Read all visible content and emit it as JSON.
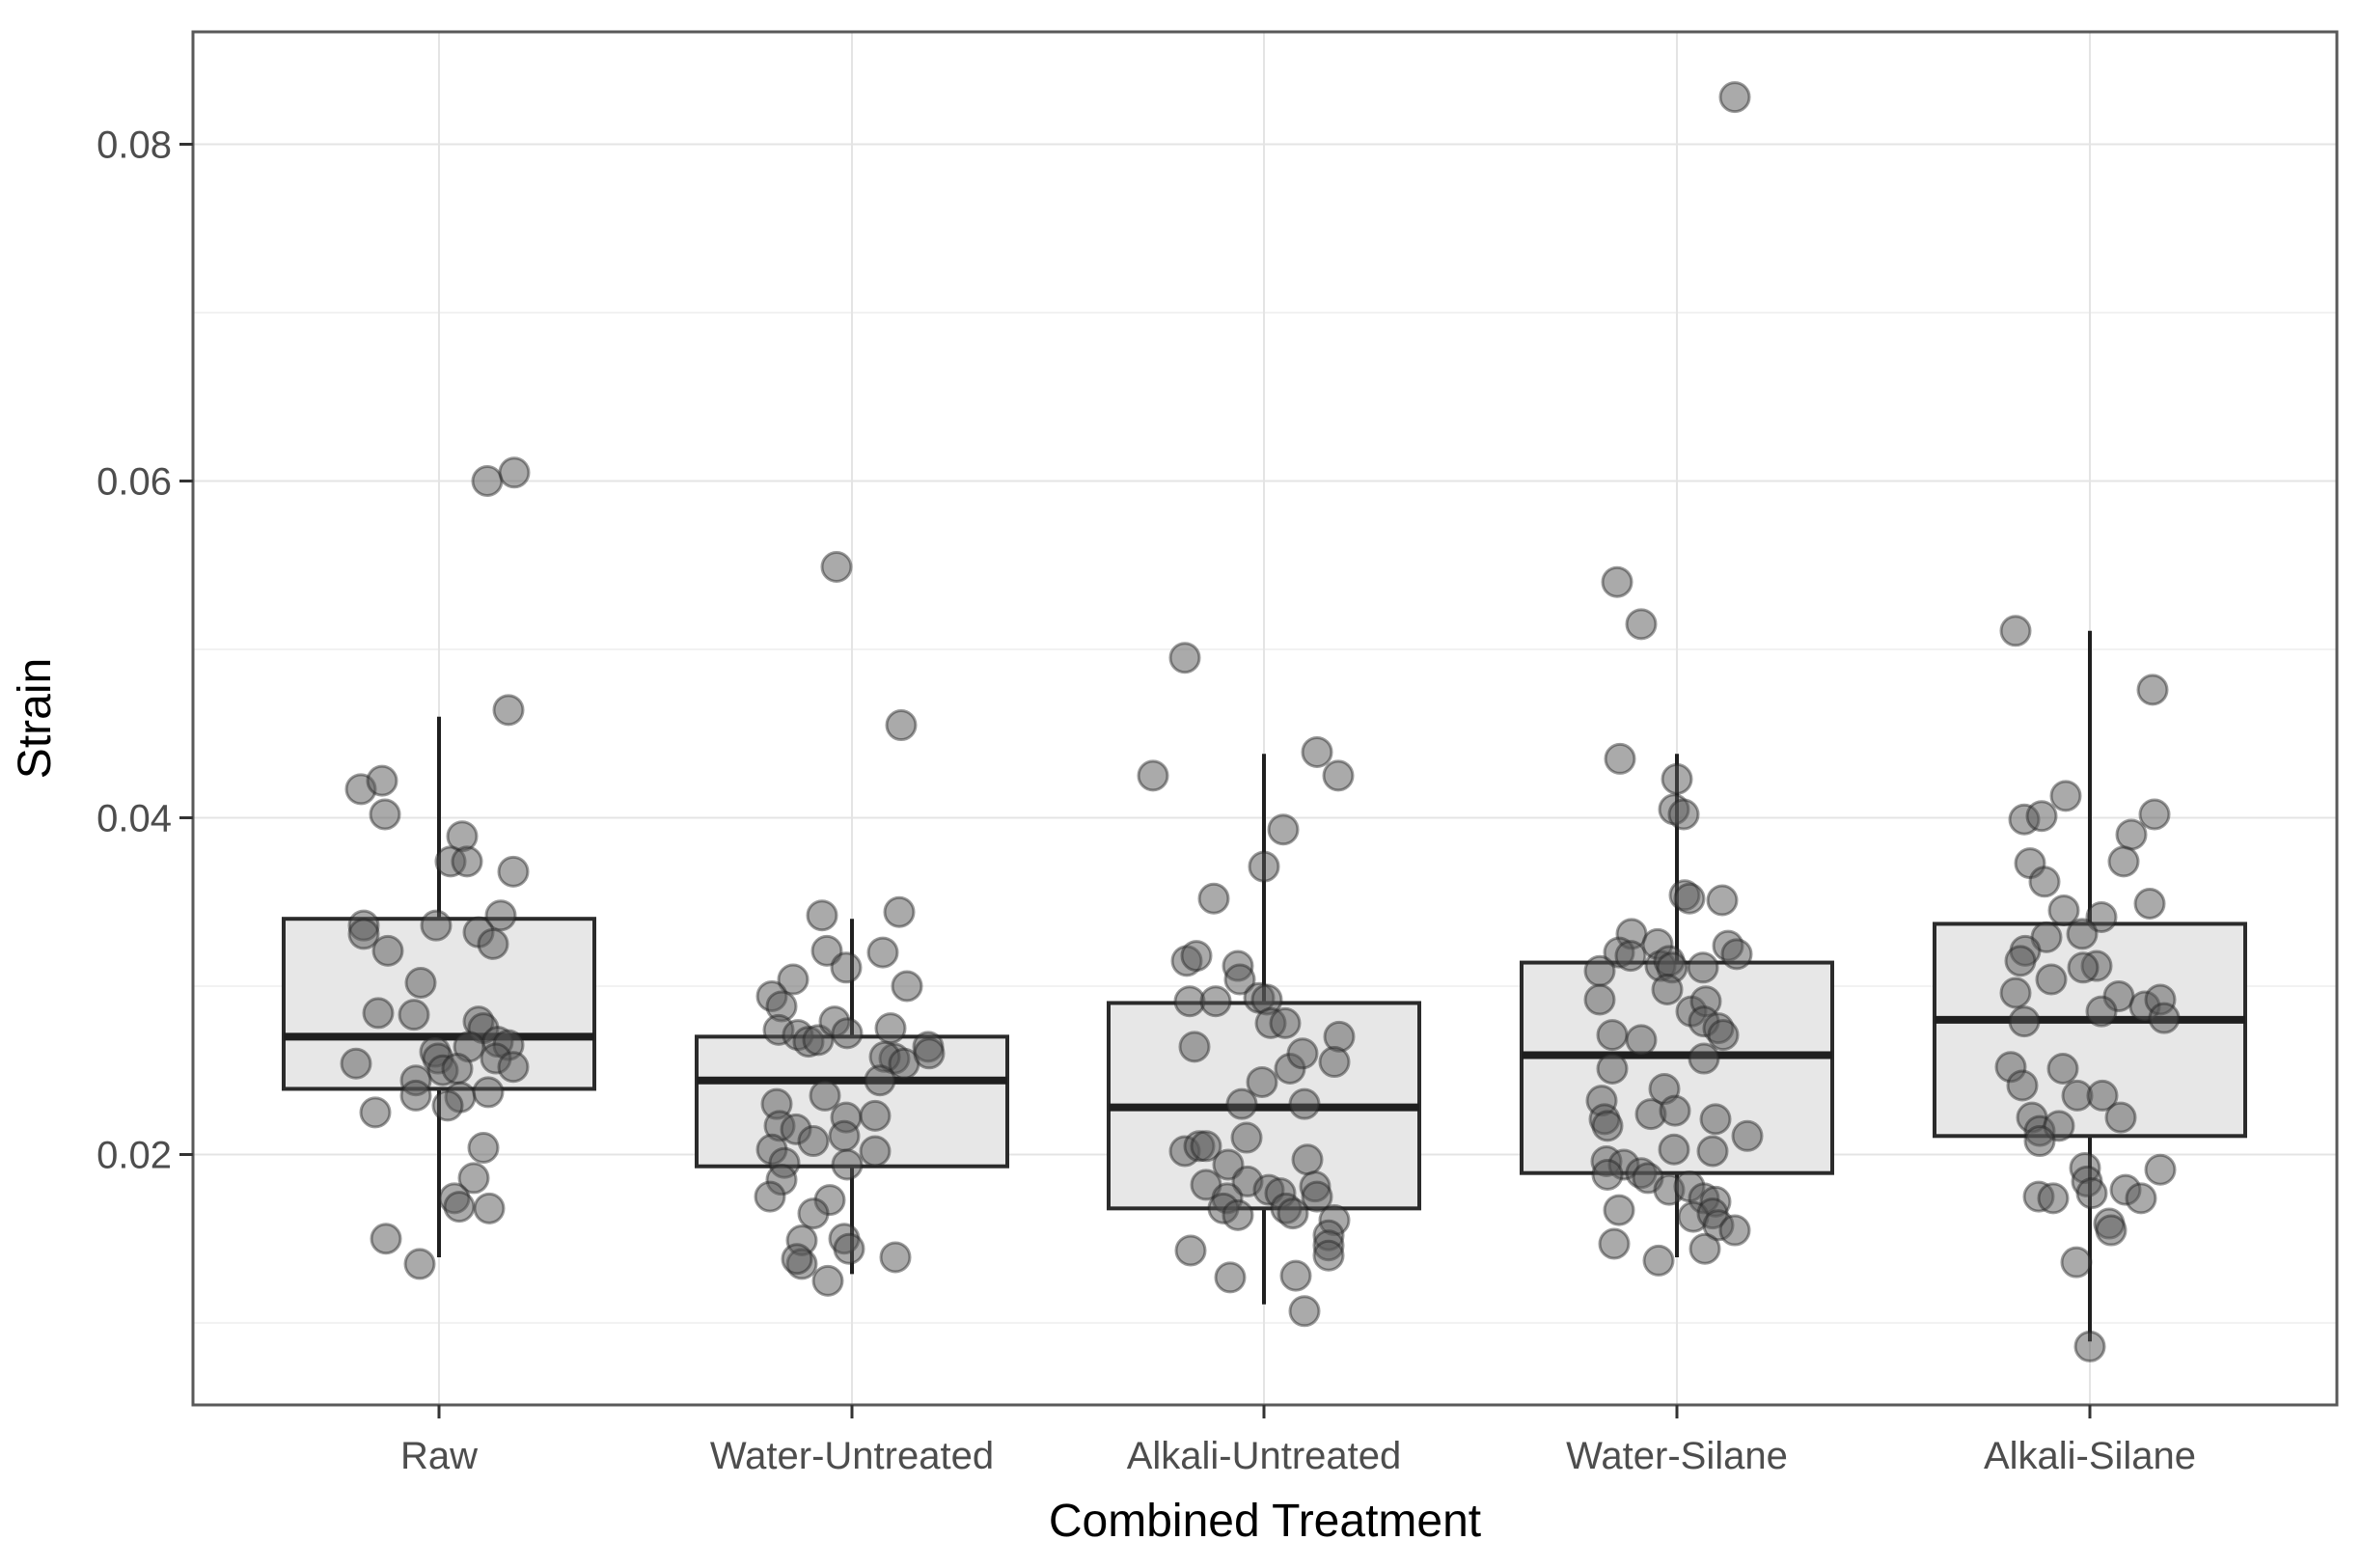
{
  "chart_data": {
    "type": "boxplot",
    "subtype": "boxplot-with-jittered-points",
    "title": "",
    "xlabel": "Combined Treatment",
    "ylabel": "Strain",
    "categories": [
      "Raw",
      "Water-Untreated",
      "Alkali-Untreated",
      "Water-Silane",
      "Alkali-Silane"
    ],
    "y_ticks": [
      0.02,
      0.04,
      0.06,
      0.08
    ],
    "y_tick_labels": [
      "0.02",
      "0.04",
      "0.06",
      "0.08"
    ],
    "y_minor_gridlines": [
      0.01,
      0.03,
      0.05,
      0.07
    ],
    "ylim": [
      0.0051,
      0.0867
    ],
    "grid": "on",
    "legend": "none",
    "colors": {
      "panel_background": "#ffffff",
      "panel_border": "#595959",
      "grid_major": "#e4e4e4",
      "grid_minor": "#f2f2f2",
      "box_fill": "#e7e7e7",
      "box_stroke": "#2b2b2b",
      "median_stroke": "#1f1f1f",
      "whisker_stroke": "#1f1f1f",
      "point_fill": "#555555",
      "point_stroke": "#222222",
      "tick_label_color": "#4d4d4d",
      "axis_title_color": "#000000"
    },
    "groups": [
      {
        "name": "Raw",
        "box": {
          "whisker_low": 0.0139,
          "q1": 0.0239,
          "median": 0.027,
          "q3": 0.034,
          "whisker_high": 0.046
        },
        "points": [
          [
            50,
            0.06
          ],
          [
            78,
            0.0605
          ],
          [
            72,
            0.0464
          ],
          [
            -81,
            0.0417
          ],
          [
            -59,
            0.0422
          ],
          [
            -56,
            0.0402
          ],
          [
            24,
            0.0389
          ],
          [
            12,
            0.0374
          ],
          [
            29,
            0.0374
          ],
          [
            77,
            0.0368
          ],
          [
            -78,
            0.0336
          ],
          [
            -78,
            0.0331
          ],
          [
            -3,
            0.0336
          ],
          [
            64,
            0.0342
          ],
          [
            41,
            0.0332
          ],
          [
            56,
            0.0325
          ],
          [
            -53,
            0.0321
          ],
          [
            -19,
            0.0302
          ],
          [
            -63,
            0.0284
          ],
          [
            -26,
            0.0283
          ],
          [
            41,
            0.0279
          ],
          [
            46,
            0.0275
          ],
          [
            61,
            0.0267
          ],
          [
            72,
            0.0265
          ],
          [
            31,
            0.0264
          ],
          [
            59,
            0.0257
          ],
          [
            -4,
            0.0261
          ],
          [
            -1,
            0.0257
          ],
          [
            -86,
            0.0254
          ],
          [
            77,
            0.0252
          ],
          [
            4,
            0.025
          ],
          [
            19,
            0.0251
          ],
          [
            -24,
            0.0244
          ],
          [
            22,
            0.0234
          ],
          [
            51,
            0.0237
          ],
          [
            -24,
            0.0235
          ],
          [
            9,
            0.0229
          ],
          [
            -66,
            0.0225
          ],
          [
            46,
            0.0204
          ],
          [
            36,
            0.0186
          ],
          [
            16,
            0.0174
          ],
          [
            21,
            0.0169
          ],
          [
            52,
            0.0168
          ],
          [
            -55,
            0.015
          ],
          [
            -20,
            0.0135
          ]
        ]
      },
      {
        "name": "Water-Untreated",
        "box": {
          "whisker_low": 0.0129,
          "q1": 0.0193,
          "median": 0.0244,
          "q3": 0.027,
          "whisker_high": 0.034
        },
        "points": [
          [
            -16,
            0.0549
          ],
          [
            51,
            0.0455
          ],
          [
            -31,
            0.0342
          ],
          [
            49,
            0.0344
          ],
          [
            -26,
            0.0321
          ],
          [
            -6,
            0.0311
          ],
          [
            32,
            0.032
          ],
          [
            -61,
            0.0304
          ],
          [
            57,
            0.03
          ],
          [
            -83,
            0.0294
          ],
          [
            -73,
            0.0288
          ],
          [
            -76,
            0.0274
          ],
          [
            -56,
            0.0271
          ],
          [
            -45,
            0.0267
          ],
          [
            -35,
            0.0268
          ],
          [
            -18,
            0.0279
          ],
          [
            -5,
            0.0272
          ],
          [
            40,
            0.0275
          ],
          [
            44,
            0.0257
          ],
          [
            34,
            0.0258
          ],
          [
            54,
            0.0254
          ],
          [
            79,
            0.0264
          ],
          [
            80,
            0.026
          ],
          [
            29,
            0.0244
          ],
          [
            -28,
            0.0235
          ],
          [
            -78,
            0.023
          ],
          [
            -75,
            0.0217
          ],
          [
            -58,
            0.0215
          ],
          [
            -40,
            0.0208
          ],
          [
            -6,
            0.0222
          ],
          [
            24,
            0.0223
          ],
          [
            -8,
            0.0211
          ],
          [
            24,
            0.0202
          ],
          [
            -83,
            0.0203
          ],
          [
            -70,
            0.0195
          ],
          [
            -5,
            0.0194
          ],
          [
            -73,
            0.0185
          ],
          [
            -85,
            0.0175
          ],
          [
            -23,
            0.0173
          ],
          [
            -40,
            0.0165
          ],
          [
            -52,
            0.0149
          ],
          [
            -52,
            0.0135
          ],
          [
            -57,
            0.0138
          ],
          [
            -25,
            0.0125
          ],
          [
            -8,
            0.015
          ],
          [
            -3,
            0.0144
          ],
          [
            45,
            0.0139
          ]
        ]
      },
      {
        "name": "Alkali-Untreated",
        "box": {
          "whisker_low": 0.0111,
          "q1": 0.0168,
          "median": 0.0228,
          "q3": 0.029,
          "whisker_high": 0.0438
        },
        "points": [
          [
            -82,
            0.0495
          ],
          [
            -115,
            0.0425
          ],
          [
            55,
            0.0439
          ],
          [
            77,
            0.0425
          ],
          [
            20,
            0.0393
          ],
          [
            0,
            0.0371
          ],
          [
            -52,
            0.0352
          ],
          [
            -80,
            0.0315
          ],
          [
            -70,
            0.0318
          ],
          [
            -27,
            0.0312
          ],
          [
            -25,
            0.0304
          ],
          [
            -77,
            0.0291
          ],
          [
            -50,
            0.0291
          ],
          [
            -5,
            0.0293
          ],
          [
            3,
            0.0292
          ],
          [
            7,
            0.0278
          ],
          [
            22,
            0.0278
          ],
          [
            -72,
            0.0264
          ],
          [
            27,
            0.0251
          ],
          [
            40,
            0.026
          ],
          [
            78,
            0.027
          ],
          [
            73,
            0.0255
          ],
          [
            -2,
            0.0243
          ],
          [
            -23,
            0.023
          ],
          [
            42,
            0.023
          ],
          [
            -18,
            0.021
          ],
          [
            -82,
            0.0202
          ],
          [
            -67,
            0.0205
          ],
          [
            -60,
            0.0205
          ],
          [
            -37,
            0.0194
          ],
          [
            45,
            0.0197
          ],
          [
            -60,
            0.0182
          ],
          [
            -17,
            0.0184
          ],
          [
            -38,
            0.0174
          ],
          [
            5,
            0.0179
          ],
          [
            17,
            0.0177
          ],
          [
            53,
            0.0181
          ],
          [
            55,
            0.0175
          ],
          [
            -42,
            0.0168
          ],
          [
            -27,
            0.0164
          ],
          [
            23,
            0.0168
          ],
          [
            30,
            0.0165
          ],
          [
            73,
            0.0161
          ],
          [
            67,
            0.0152
          ],
          [
            67,
            0.0146
          ],
          [
            67,
            0.014
          ],
          [
            -76,
            0.0143
          ],
          [
            -35,
            0.0127
          ],
          [
            33,
            0.0128
          ],
          [
            42,
            0.0107
          ]
        ]
      },
      {
        "name": "Water-Silane",
        "box": {
          "whisker_low": 0.0139,
          "q1": 0.0189,
          "median": 0.0259,
          "q3": 0.0314,
          "whisker_high": 0.0438
        },
        "points": [
          [
            60,
            0.0828
          ],
          [
            -62,
            0.054
          ],
          [
            -37,
            0.0515
          ],
          [
            -59,
            0.0435
          ],
          [
            0,
            0.0423
          ],
          [
            -3,
            0.0405
          ],
          [
            7,
            0.0402
          ],
          [
            8,
            0.0354
          ],
          [
            13,
            0.0352
          ],
          [
            47,
            0.0351
          ],
          [
            -47,
            0.0331
          ],
          [
            -60,
            0.032
          ],
          [
            -48,
            0.0318
          ],
          [
            -20,
            0.0325
          ],
          [
            -17,
            0.0312
          ],
          [
            -8,
            0.0315
          ],
          [
            -5,
            0.0311
          ],
          [
            27,
            0.0311
          ],
          [
            53,
            0.0324
          ],
          [
            62,
            0.0319
          ],
          [
            -80,
            0.0309
          ],
          [
            -10,
            0.0298
          ],
          [
            -80,
            0.0292
          ],
          [
            15,
            0.0285
          ],
          [
            30,
            0.0291
          ],
          [
            28,
            0.0279
          ],
          [
            43,
            0.0275
          ],
          [
            48,
            0.0271
          ],
          [
            -67,
            0.0271
          ],
          [
            -37,
            0.0268
          ],
          [
            28,
            0.0257
          ],
          [
            -67,
            0.0251
          ],
          [
            -78,
            0.0232
          ],
          [
            -75,
            0.0221
          ],
          [
            -72,
            0.0217
          ],
          [
            -27,
            0.0224
          ],
          [
            -13,
            0.0239
          ],
          [
            -2,
            0.0226
          ],
          [
            40,
            0.0221
          ],
          [
            73,
            0.0211
          ],
          [
            37,
            0.0202
          ],
          [
            -3,
            0.0203
          ],
          [
            -73,
            0.0196
          ],
          [
            -55,
            0.0194
          ],
          [
            -72,
            0.0188
          ],
          [
            -37,
            0.0189
          ],
          [
            -30,
            0.0186
          ],
          [
            -8,
            0.0179
          ],
          [
            13,
            0.0181
          ],
          [
            28,
            0.0174
          ],
          [
            40,
            0.0172
          ],
          [
            17,
            0.0163
          ],
          [
            37,
            0.0165
          ],
          [
            43,
            0.0158
          ],
          [
            60,
            0.0155
          ],
          [
            -60,
            0.0167
          ],
          [
            -65,
            0.0147
          ],
          [
            -19,
            0.0137
          ],
          [
            29,
            0.0144
          ]
        ]
      },
      {
        "name": "Alkali-Silane",
        "box": {
          "whisker_low": 0.0089,
          "q1": 0.0211,
          "median": 0.028,
          "q3": 0.0337,
          "whisker_high": 0.0511
        },
        "points": [
          [
            -77,
            0.0511
          ],
          [
            65,
            0.0476
          ],
          [
            -25,
            0.0413
          ],
          [
            -68,
            0.0399
          ],
          [
            -50,
            0.0401
          ],
          [
            67,
            0.0402
          ],
          [
            43,
            0.039
          ],
          [
            35,
            0.0374
          ],
          [
            -62,
            0.0373
          ],
          [
            -47,
            0.0362
          ],
          [
            -27,
            0.0345
          ],
          [
            62,
            0.0349
          ],
          [
            12,
            0.0341
          ],
          [
            -8,
            0.0331
          ],
          [
            -45,
            0.0329
          ],
          [
            -67,
            0.0321
          ],
          [
            -72,
            0.0315
          ],
          [
            7,
            0.0312
          ],
          [
            -7,
            0.0311
          ],
          [
            -40,
            0.0304
          ],
          [
            -77,
            0.0296
          ],
          [
            30,
            0.0294
          ],
          [
            57,
            0.0288
          ],
          [
            73,
            0.0292
          ],
          [
            77,
            0.0281
          ],
          [
            12,
            0.0285
          ],
          [
            -68,
            0.0279
          ],
          [
            -82,
            0.0252
          ],
          [
            -70,
            0.0241
          ],
          [
            -28,
            0.0251
          ],
          [
            -13,
            0.0235
          ],
          [
            13,
            0.0235
          ],
          [
            32,
            0.0222
          ],
          [
            -60,
            0.0222
          ],
          [
            -52,
            0.0214
          ],
          [
            -32,
            0.0217
          ],
          [
            -52,
            0.0208
          ],
          [
            -5,
            0.0192
          ],
          [
            -3,
            0.0184
          ],
          [
            73,
            0.0191
          ],
          [
            -53,
            0.0175
          ],
          [
            -38,
            0.0174
          ],
          [
            2,
            0.0177
          ],
          [
            37,
            0.0179
          ],
          [
            53,
            0.0174
          ],
          [
            20,
            0.0159
          ],
          [
            22,
            0.0155
          ],
          [
            -14,
            0.0136
          ],
          [
            0,
            0.0086
          ]
        ]
      }
    ]
  }
}
